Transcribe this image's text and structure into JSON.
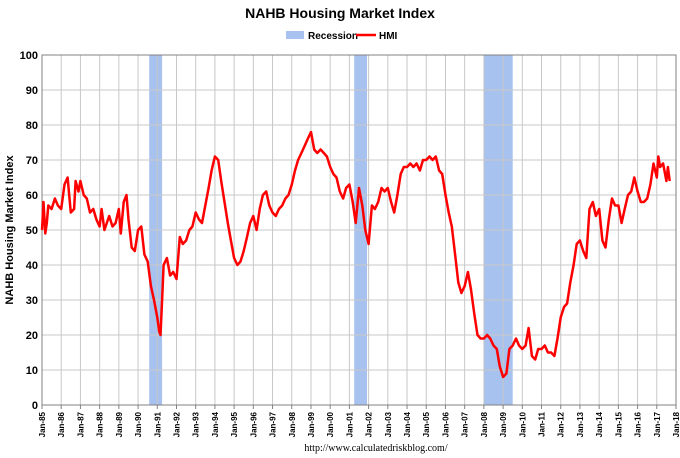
{
  "chart_data": {
    "type": "line",
    "title": "NAHB Housing Market Index",
    "ylabel": "NAHB Housing Market Index",
    "xlabel": "",
    "ylim": [
      0,
      100
    ],
    "yticks": [
      0,
      10,
      20,
      30,
      40,
      50,
      60,
      70,
      80,
      90,
      100
    ],
    "xlim": [
      1985,
      2018
    ],
    "xtick_labels": [
      "Jan-85",
      "Jan-86",
      "Jan-87",
      "Jan-88",
      "Jan-89",
      "Jan-90",
      "Jan-91",
      "Jan-92",
      "Jan-93",
      "Jan-94",
      "Jan-95",
      "Jan-96",
      "Jan-97",
      "Jan-98",
      "Jan-99",
      "Jan-00",
      "Jan-01",
      "Jan-02",
      "Jan-03",
      "Jan-04",
      "Jan-05",
      "Jan-06",
      "Jan-07",
      "Jan-08",
      "Jan-09",
      "Jan-10",
      "Jan-11",
      "Jan-12",
      "Jan-13",
      "Jan-14",
      "Jan-15",
      "Jan-16",
      "Jan-17",
      "Jan-18"
    ],
    "grid": true,
    "legend": {
      "position": "top-center",
      "entries": [
        "Recession",
        "HMI"
      ]
    },
    "colors": {
      "hmi": "#ff0000",
      "recession": "#a7c2ee",
      "grid": "#c8c8c8"
    },
    "recessions": [
      {
        "start": 1990.58,
        "end": 1991.25
      },
      {
        "start": 2001.25,
        "end": 2001.92
      },
      {
        "start": 2008.0,
        "end": 2009.5
      }
    ],
    "series": [
      {
        "name": "HMI",
        "points": [
          [
            1985.0,
            50
          ],
          [
            1985.08,
            58
          ],
          [
            1985.17,
            49
          ],
          [
            1985.25,
            52
          ],
          [
            1985.33,
            57
          ],
          [
            1985.5,
            56
          ],
          [
            1985.67,
            59
          ],
          [
            1985.83,
            57
          ],
          [
            1986.0,
            56
          ],
          [
            1986.17,
            63
          ],
          [
            1986.33,
            65
          ],
          [
            1986.5,
            55
          ],
          [
            1986.67,
            56
          ],
          [
            1986.75,
            64
          ],
          [
            1986.9,
            61
          ],
          [
            1987.0,
            64
          ],
          [
            1987.17,
            60
          ],
          [
            1987.33,
            59
          ],
          [
            1987.5,
            55
          ],
          [
            1987.67,
            56
          ],
          [
            1987.83,
            53
          ],
          [
            1988.0,
            51
          ],
          [
            1988.1,
            56
          ],
          [
            1988.25,
            50
          ],
          [
            1988.5,
            54
          ],
          [
            1988.67,
            51
          ],
          [
            1988.83,
            52
          ],
          [
            1989.0,
            56
          ],
          [
            1989.1,
            49
          ],
          [
            1989.25,
            58
          ],
          [
            1989.4,
            60
          ],
          [
            1989.5,
            53
          ],
          [
            1989.67,
            45
          ],
          [
            1989.83,
            44
          ],
          [
            1990.0,
            50
          ],
          [
            1990.17,
            51
          ],
          [
            1990.33,
            43
          ],
          [
            1990.5,
            41
          ],
          [
            1990.67,
            34
          ],
          [
            1990.83,
            30
          ],
          [
            1991.0,
            25
          ],
          [
            1991.1,
            21
          ],
          [
            1991.17,
            20
          ],
          [
            1991.25,
            30
          ],
          [
            1991.33,
            40
          ],
          [
            1991.5,
            42
          ],
          [
            1991.67,
            37
          ],
          [
            1991.83,
            38
          ],
          [
            1992.0,
            36
          ],
          [
            1992.17,
            48
          ],
          [
            1992.33,
            46
          ],
          [
            1992.5,
            47
          ],
          [
            1992.67,
            50
          ],
          [
            1992.83,
            51
          ],
          [
            1993.0,
            55
          ],
          [
            1993.17,
            53
          ],
          [
            1993.33,
            52
          ],
          [
            1993.5,
            57
          ],
          [
            1993.67,
            62
          ],
          [
            1993.83,
            67
          ],
          [
            1994.0,
            71
          ],
          [
            1994.17,
            70
          ],
          [
            1994.33,
            64
          ],
          [
            1994.5,
            58
          ],
          [
            1994.67,
            52
          ],
          [
            1994.83,
            47
          ],
          [
            1995.0,
            42
          ],
          [
            1995.17,
            40
          ],
          [
            1995.33,
            41
          ],
          [
            1995.5,
            44
          ],
          [
            1995.67,
            48
          ],
          [
            1995.83,
            52
          ],
          [
            1996.0,
            54
          ],
          [
            1996.17,
            50
          ],
          [
            1996.33,
            56
          ],
          [
            1996.5,
            60
          ],
          [
            1996.67,
            61
          ],
          [
            1996.83,
            57
          ],
          [
            1997.0,
            55
          ],
          [
            1997.17,
            54
          ],
          [
            1997.33,
            56
          ],
          [
            1997.5,
            57
          ],
          [
            1997.67,
            59
          ],
          [
            1997.83,
            60
          ],
          [
            1998.0,
            63
          ],
          [
            1998.17,
            67
          ],
          [
            1998.33,
            70
          ],
          [
            1998.5,
            72
          ],
          [
            1998.67,
            74
          ],
          [
            1998.83,
            76
          ],
          [
            1999.0,
            78
          ],
          [
            1999.17,
            73
          ],
          [
            1999.33,
            72
          ],
          [
            1999.5,
            73
          ],
          [
            1999.67,
            72
          ],
          [
            1999.83,
            71
          ],
          [
            2000.0,
            68
          ],
          [
            2000.17,
            66
          ],
          [
            2000.33,
            65
          ],
          [
            2000.5,
            61
          ],
          [
            2000.67,
            59
          ],
          [
            2000.83,
            62
          ],
          [
            2001.0,
            63
          ],
          [
            2001.17,
            58
          ],
          [
            2001.33,
            52
          ],
          [
            2001.5,
            62
          ],
          [
            2001.67,
            57
          ],
          [
            2001.83,
            50
          ],
          [
            2002.0,
            46
          ],
          [
            2002.17,
            57
          ],
          [
            2002.33,
            56
          ],
          [
            2002.5,
            58
          ],
          [
            2002.67,
            62
          ],
          [
            2002.83,
            61
          ],
          [
            2003.0,
            62
          ],
          [
            2003.17,
            58
          ],
          [
            2003.33,
            55
          ],
          [
            2003.5,
            60
          ],
          [
            2003.67,
            66
          ],
          [
            2003.83,
            68
          ],
          [
            2004.0,
            68
          ],
          [
            2004.17,
            69
          ],
          [
            2004.33,
            68
          ],
          [
            2004.5,
            69
          ],
          [
            2004.67,
            67
          ],
          [
            2004.83,
            70
          ],
          [
            2005.0,
            70
          ],
          [
            2005.17,
            71
          ],
          [
            2005.33,
            70
          ],
          [
            2005.5,
            71
          ],
          [
            2005.67,
            67
          ],
          [
            2005.83,
            66
          ],
          [
            2006.0,
            60
          ],
          [
            2006.17,
            55
          ],
          [
            2006.33,
            51
          ],
          [
            2006.5,
            43
          ],
          [
            2006.67,
            35
          ],
          [
            2006.83,
            32
          ],
          [
            2007.0,
            34
          ],
          [
            2007.17,
            38
          ],
          [
            2007.33,
            33
          ],
          [
            2007.5,
            26
          ],
          [
            2007.67,
            20
          ],
          [
            2007.83,
            19
          ],
          [
            2008.0,
            19
          ],
          [
            2008.17,
            20
          ],
          [
            2008.33,
            19
          ],
          [
            2008.5,
            17
          ],
          [
            2008.67,
            16
          ],
          [
            2008.83,
            11
          ],
          [
            2009.0,
            8
          ],
          [
            2009.17,
            9
          ],
          [
            2009.33,
            16
          ],
          [
            2009.5,
            17
          ],
          [
            2009.67,
            19
          ],
          [
            2009.83,
            17
          ],
          [
            2010.0,
            16
          ],
          [
            2010.17,
            17
          ],
          [
            2010.33,
            22
          ],
          [
            2010.5,
            14
          ],
          [
            2010.67,
            13
          ],
          [
            2010.83,
            16
          ],
          [
            2011.0,
            16
          ],
          [
            2011.17,
            17
          ],
          [
            2011.33,
            15
          ],
          [
            2011.5,
            15
          ],
          [
            2011.67,
            14
          ],
          [
            2011.83,
            19
          ],
          [
            2012.0,
            25
          ],
          [
            2012.17,
            28
          ],
          [
            2012.33,
            29
          ],
          [
            2012.5,
            35
          ],
          [
            2012.67,
            40
          ],
          [
            2012.83,
            46
          ],
          [
            2013.0,
            47
          ],
          [
            2013.17,
            44
          ],
          [
            2013.33,
            42
          ],
          [
            2013.5,
            56
          ],
          [
            2013.67,
            58
          ],
          [
            2013.83,
            54
          ],
          [
            2014.0,
            56
          ],
          [
            2014.17,
            47
          ],
          [
            2014.33,
            45
          ],
          [
            2014.5,
            53
          ],
          [
            2014.67,
            59
          ],
          [
            2014.83,
            57
          ],
          [
            2015.0,
            57
          ],
          [
            2015.17,
            52
          ],
          [
            2015.33,
            56
          ],
          [
            2015.5,
            60
          ],
          [
            2015.67,
            61
          ],
          [
            2015.83,
            65
          ],
          [
            2016.0,
            61
          ],
          [
            2016.17,
            58
          ],
          [
            2016.33,
            58
          ],
          [
            2016.5,
            59
          ],
          [
            2016.67,
            63
          ],
          [
            2016.83,
            69
          ],
          [
            2017.0,
            65
          ],
          [
            2017.08,
            71
          ],
          [
            2017.17,
            68
          ],
          [
            2017.33,
            69
          ],
          [
            2017.5,
            64
          ],
          [
            2017.58,
            68
          ],
          [
            2017.67,
            64
          ]
        ]
      }
    ]
  },
  "footer": {
    "source": "http://www.calculatedriskblog.com/"
  }
}
